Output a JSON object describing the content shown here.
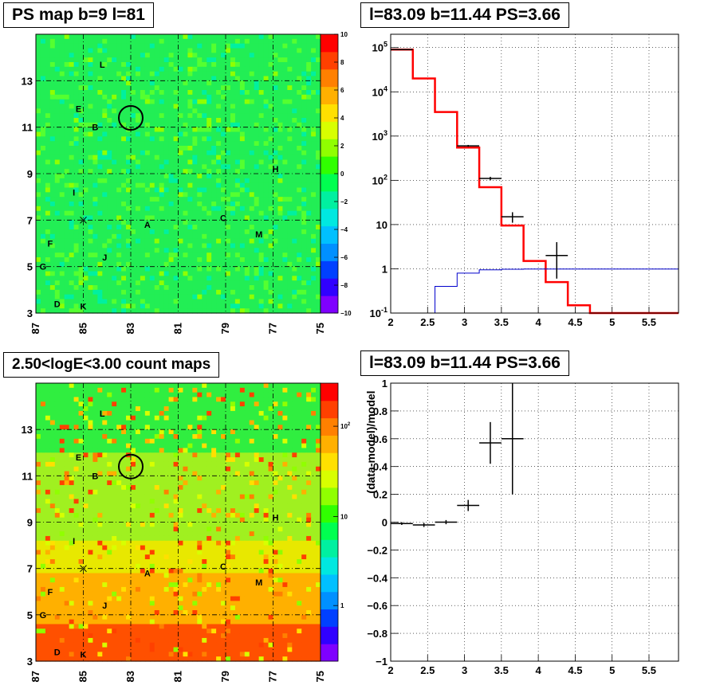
{
  "titles": {
    "top_left": "PS map b=9 l=81",
    "top_right": "l=83.09 b=11.44 PS=3.66",
    "bottom_left": "2.50<logE<3.00 count maps",
    "bottom_right": "l=83.09 b=11.44 PS=3.66"
  },
  "colors": {
    "frame": "#000000",
    "model_line": "#ff0000",
    "background_model_line": "#0000cc",
    "data_points": "#000000",
    "grid": "#000000"
  },
  "chart_data": [
    {
      "type": "heatmap",
      "id": "ps_map",
      "x_ticks": [
        "87",
        "85",
        "83",
        "81",
        "79",
        "77",
        "75"
      ],
      "xlim": [
        87,
        75
      ],
      "y_ticks": [
        "13",
        "11",
        "9",
        "7",
        "5",
        "3"
      ],
      "ylim": [
        3,
        15
      ],
      "colorbar": {
        "ticks": [
          "10",
          "8",
          "6",
          "4",
          "2",
          "0",
          "−2",
          "−4",
          "−6",
          "−8",
          "−10"
        ],
        "range": [
          -10,
          10
        ],
        "colors": [
          "#7f00ff",
          "#3000ff",
          "#0040ff",
          "#0090ff",
          "#00c0ff",
          "#00e8e0",
          "#00f0a0",
          "#00ff50",
          "#30ff00",
          "#90ff00",
          "#d8ff00",
          "#ffe000",
          "#ffb000",
          "#ff8000",
          "#ff4000",
          "#ff0000"
        ]
      },
      "field_color": "#22ee55",
      "sources": [
        {
          "label": "L",
          "l": 84.2,
          "b": 13.7
        },
        {
          "label": "E",
          "l": 85.2,
          "b": 11.8
        },
        {
          "label": "B",
          "l": 84.5,
          "b": 11.0
        },
        {
          "label": "H",
          "l": 76.9,
          "b": 9.2
        },
        {
          "label": "I",
          "l": 85.4,
          "b": 8.2
        },
        {
          "label": "C",
          "l": 79.1,
          "b": 7.1
        },
        {
          "label": "A",
          "l": 82.3,
          "b": 6.8
        },
        {
          "label": "M",
          "l": 77.6,
          "b": 6.4
        },
        {
          "label": "F",
          "l": 86.4,
          "b": 6.0
        },
        {
          "label": "J",
          "l": 84.1,
          "b": 5.4
        },
        {
          "label": "G",
          "l": 86.7,
          "b": 5.0
        },
        {
          "label": "D",
          "l": 86.1,
          "b": 3.4
        },
        {
          "label": "K",
          "l": 85.0,
          "b": 3.3
        }
      ],
      "cross": {
        "l": 85.0,
        "b": 7.0
      },
      "circle": {
        "l": 83.0,
        "b": 11.4
      }
    },
    {
      "type": "line",
      "id": "spectrum",
      "x_ticks": [
        "2",
        "2.5",
        "3",
        "3.5",
        "4",
        "4.5",
        "5",
        "5.5"
      ],
      "xlim": [
        2,
        5.9
      ],
      "ylog": true,
      "ylim": [
        0.1,
        200000
      ],
      "y_ticks": [
        "10^-1",
        "1",
        "10",
        "10^2",
        "10^3",
        "10^4",
        "10^5"
      ],
      "bin_edges": [
        2.0,
        2.3,
        2.6,
        2.9,
        3.2,
        3.5,
        3.8,
        4.1,
        4.4,
        4.7,
        5.0,
        5.3,
        5.6,
        5.9
      ],
      "series": [
        {
          "role": "total_model",
          "values": [
            90000,
            20000,
            3500,
            550,
            70,
            9.5,
            1.5,
            0.5,
            0.15,
            0.1,
            0.1,
            0.1,
            0.1
          ]
        },
        {
          "role": "background",
          "values": [
            0.1,
            0.1,
            0.4,
            0.8,
            0.95,
            0.98,
            0.99,
            0.99,
            0.99,
            0.99,
            0.99,
            0.99,
            0.99
          ]
        }
      ],
      "points": [
        {
          "x": 2.15,
          "xerr": 0.15,
          "y": 90000,
          "ylo": 89000,
          "yhi": 91000
        },
        {
          "x": 3.05,
          "xerr": 0.15,
          "y": 600,
          "ylo": 570,
          "yhi": 630
        },
        {
          "x": 3.35,
          "xerr": 0.15,
          "y": 110,
          "ylo": 100,
          "yhi": 120
        },
        {
          "x": 3.65,
          "xerr": 0.15,
          "y": 15,
          "ylo": 11,
          "yhi": 19
        },
        {
          "x": 4.25,
          "xerr": 0.15,
          "y": 2,
          "ylo": 0.6,
          "yhi": 4
        }
      ]
    },
    {
      "type": "heatmap",
      "id": "count_map",
      "x_ticks": [
        "87",
        "85",
        "83",
        "81",
        "79",
        "77",
        "75"
      ],
      "xlim": [
        87,
        75
      ],
      "y_ticks": [
        "13",
        "11",
        "9",
        "7",
        "5",
        "3"
      ],
      "ylim": [
        3,
        15
      ],
      "colorbar": {
        "ticks": [
          "10^2",
          "10",
          "1"
        ],
        "log": true,
        "colors": [
          "#7f00ff",
          "#3000ff",
          "#0040ff",
          "#0090ff",
          "#00c0ff",
          "#00e8e0",
          "#00f0a0",
          "#00ff50",
          "#30ff00",
          "#90ff00",
          "#d8ff00",
          "#ffe000",
          "#ffb000",
          "#ff8000",
          "#ff4000",
          "#ff0000"
        ]
      },
      "gradient_stops": [
        {
          "b": 15,
          "color": "#30ee40"
        },
        {
          "b": 9,
          "color": "#a0f020"
        },
        {
          "b": 7.5,
          "color": "#e8e800"
        },
        {
          "b": 6,
          "color": "#ffb000"
        },
        {
          "b": 3,
          "color": "#ff5000"
        }
      ],
      "sources": [
        {
          "label": "L",
          "l": 84.2,
          "b": 13.7
        },
        {
          "label": "E",
          "l": 85.2,
          "b": 11.8
        },
        {
          "label": "B",
          "l": 84.5,
          "b": 11.0
        },
        {
          "label": "H",
          "l": 76.9,
          "b": 9.2
        },
        {
          "label": "I",
          "l": 85.4,
          "b": 8.2
        },
        {
          "label": "C",
          "l": 79.1,
          "b": 7.1
        },
        {
          "label": "A",
          "l": 82.3,
          "b": 6.8
        },
        {
          "label": "M",
          "l": 77.6,
          "b": 6.4
        },
        {
          "label": "F",
          "l": 86.4,
          "b": 6.0
        },
        {
          "label": "J",
          "l": 84.1,
          "b": 5.4
        },
        {
          "label": "G",
          "l": 86.7,
          "b": 5.0
        },
        {
          "label": "D",
          "l": 86.1,
          "b": 3.4
        },
        {
          "label": "K",
          "l": 85.0,
          "b": 3.3
        }
      ],
      "cross": {
        "l": 85.0,
        "b": 7.0
      },
      "circle": {
        "l": 83.0,
        "b": 11.4
      }
    },
    {
      "type": "scatter",
      "id": "residuals",
      "x_ticks": [
        "2",
        "2.5",
        "3",
        "3.5",
        "4",
        "4.5",
        "5",
        "5.5"
      ],
      "xlim": [
        2,
        5.9
      ],
      "ylim": [
        -1,
        1
      ],
      "y_ticks": [
        "−1",
        "−0.8",
        "−0.6",
        "−0.4",
        "−0.2",
        "0",
        "0.2",
        "0.4",
        "0.6",
        "0.8",
        "1"
      ],
      "ylabel": "(data-model)/model",
      "points": [
        {
          "x": 2.15,
          "xerr": 0.15,
          "y": -0.01,
          "ylo": -0.02,
          "yhi": 0.0
        },
        {
          "x": 2.45,
          "xerr": 0.15,
          "y": -0.02,
          "ylo": -0.035,
          "yhi": -0.005
        },
        {
          "x": 2.75,
          "xerr": 0.15,
          "y": 0.0,
          "ylo": -0.015,
          "yhi": 0.015
        },
        {
          "x": 3.05,
          "xerr": 0.15,
          "y": 0.12,
          "ylo": 0.08,
          "yhi": 0.16
        },
        {
          "x": 3.35,
          "xerr": 0.15,
          "y": 0.57,
          "ylo": 0.42,
          "yhi": 0.72
        },
        {
          "x": 3.65,
          "xerr": 0.15,
          "y": 0.6,
          "ylo": 0.2,
          "yhi": 1.0
        }
      ]
    }
  ]
}
